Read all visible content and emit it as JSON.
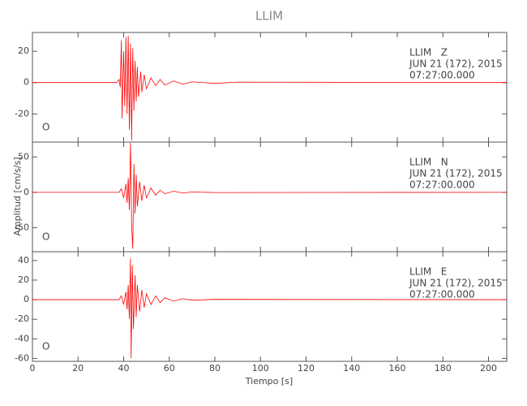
{
  "title": "LLIM",
  "xlabel": "Tiempo [s]",
  "ylabel": "Amplitud [cm/s/s]",
  "xlim": [
    0,
    208
  ],
  "xticks": [
    0,
    20,
    40,
    60,
    80,
    100,
    120,
    140,
    160,
    180,
    200
  ],
  "chart_data": [
    {
      "type": "line",
      "color": "#ff0000",
      "corner_label": "O",
      "annotations": [
        "LLIM   Z",
        "JUN 21 (172), 2015",
        "07:27:00.000"
      ],
      "ylim": [
        -38,
        32
      ],
      "yticks": [
        20,
        0,
        -20
      ],
      "x": [
        0,
        37,
        38,
        38.5,
        39,
        39.3,
        40,
        40.5,
        41,
        41.5,
        42,
        42.5,
        43,
        43.5,
        44,
        44.5,
        45,
        45.5,
        46,
        46.5,
        47.5,
        48,
        49,
        50,
        52,
        54,
        56,
        58,
        62,
        66,
        70,
        80,
        90,
        208
      ],
      "values": [
        0,
        0,
        2,
        -3,
        27,
        -23,
        20,
        -15,
        29,
        -20,
        30,
        -30,
        25,
        -37,
        22,
        -18,
        14,
        -12,
        10,
        -9,
        7,
        -6,
        5,
        -4,
        3,
        -2,
        2,
        -1.5,
        1,
        -1,
        0.5,
        -0.5,
        0.3,
        0
      ]
    },
    {
      "type": "line",
      "color": "#ff0000",
      "corner_label": "O",
      "annotations": [
        "LLIM   N",
        "JUN 21 (172), 2015",
        "07:27:00.000"
      ],
      "ylim": [
        -84,
        71
      ],
      "yticks": [
        50,
        0,
        -50
      ],
      "x": [
        0,
        38,
        39,
        40,
        41,
        41.5,
        42,
        42.5,
        43,
        43.5,
        44,
        44.5,
        45,
        45.5,
        46,
        47,
        48,
        49,
        50,
        52,
        54,
        56,
        58,
        62,
        66,
        70,
        80,
        208
      ],
      "values": [
        0,
        0,
        5,
        -8,
        12,
        -15,
        20,
        -25,
        70,
        -45,
        -80,
        40,
        -30,
        25,
        -20,
        15,
        -12,
        10,
        -8,
        6,
        -4,
        3,
        -2,
        1.5,
        -1,
        0.5,
        -0.3,
        0
      ]
    },
    {
      "type": "line",
      "color": "#ff0000",
      "corner_label": "O",
      "annotations": [
        "LLIM   E",
        "JUN 21 (172), 2015",
        "07:27:00.000"
      ],
      "ylim": [
        -63,
        49
      ],
      "yticks": [
        40,
        20,
        0,
        -20,
        -40,
        -60
      ],
      "x": [
        0,
        38,
        39,
        40,
        41,
        41.5,
        42,
        42.5,
        43,
        43.3,
        43.8,
        44.3,
        45,
        45.5,
        46,
        47,
        48,
        49,
        50,
        52,
        54,
        56,
        58,
        62,
        66,
        70,
        80,
        208
      ],
      "values": [
        0,
        0,
        4,
        -5,
        8,
        -10,
        15,
        -20,
        42,
        -60,
        35,
        -30,
        25,
        -18,
        15,
        -12,
        10,
        -8,
        6,
        -5,
        4,
        -3,
        2,
        -1.5,
        1,
        -0.5,
        0.3,
        0
      ]
    }
  ]
}
